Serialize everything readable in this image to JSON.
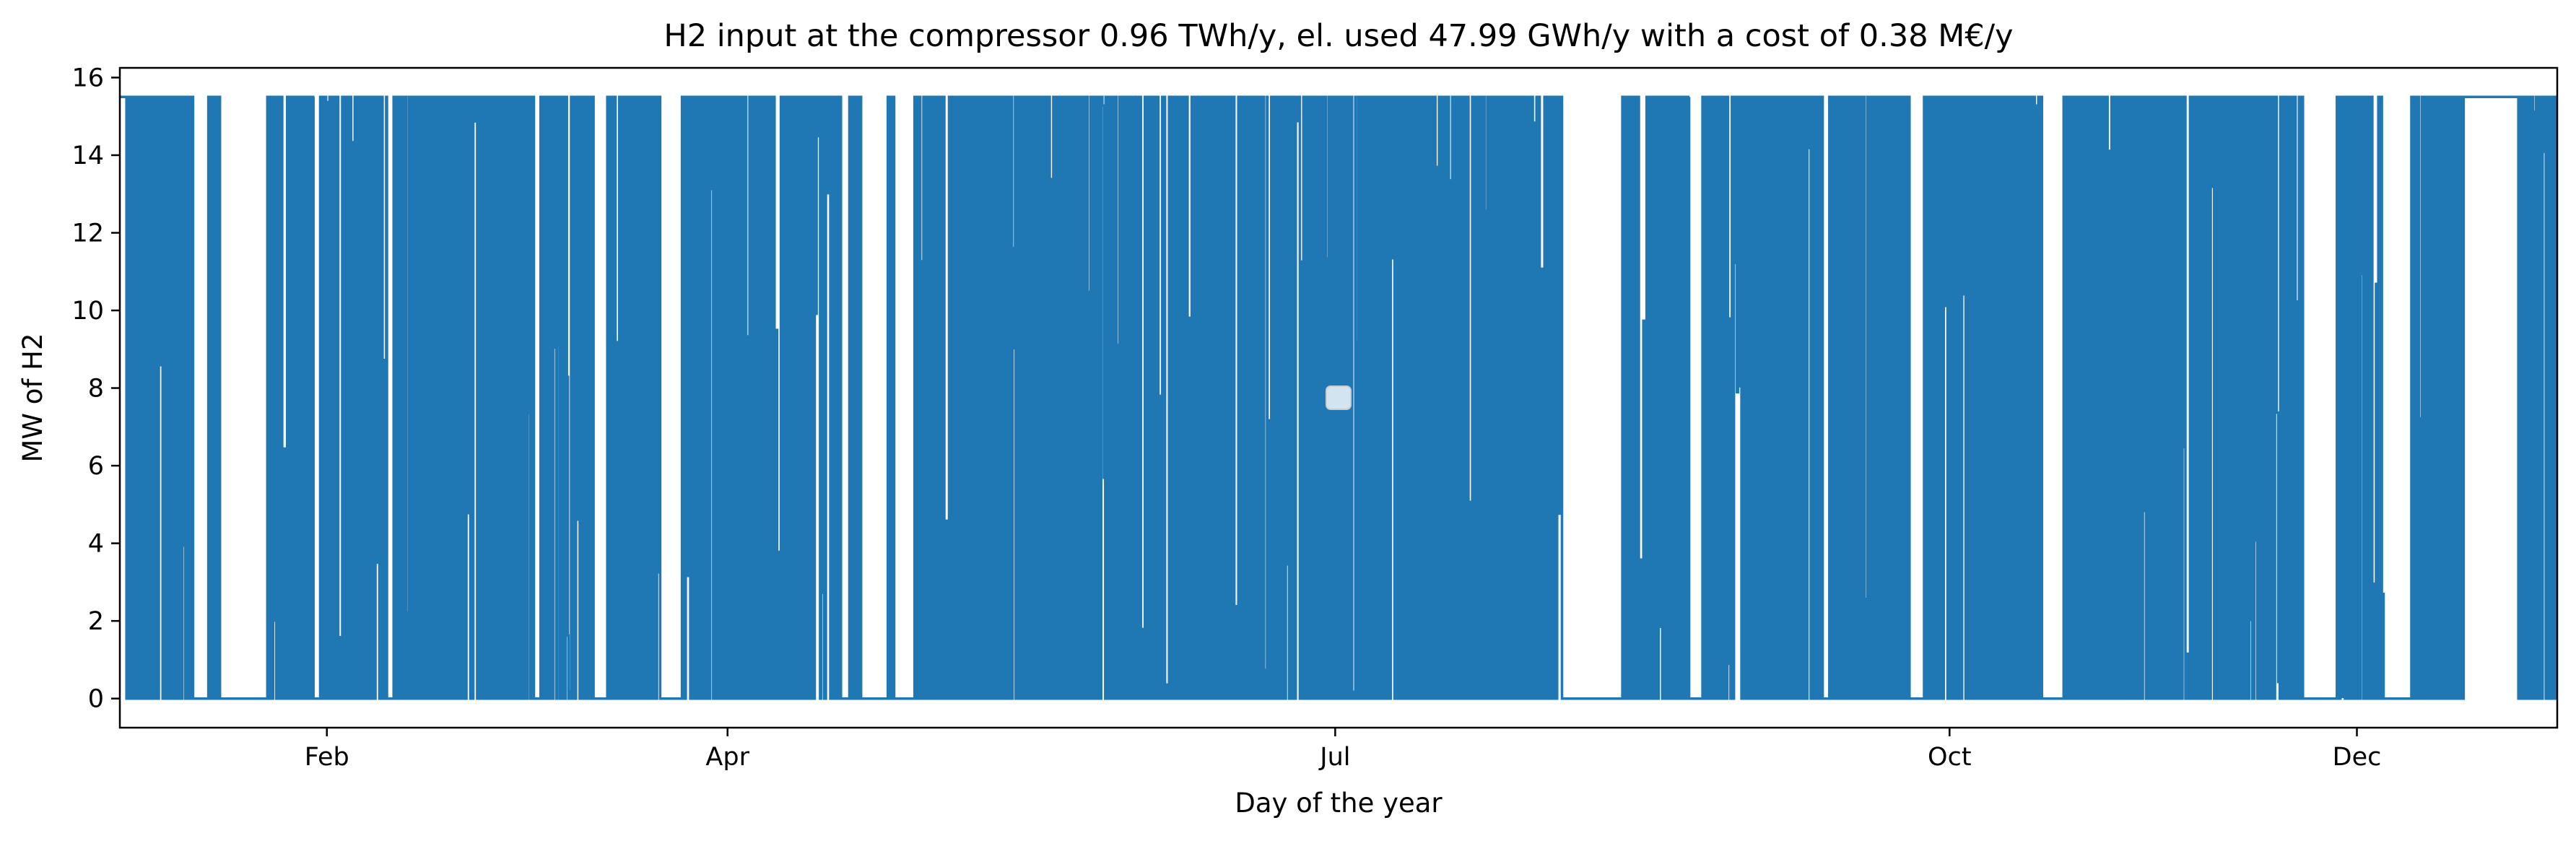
{
  "chart_data": {
    "type": "line",
    "title": "H2 input at the compressor 0.96 TWh/y, el. used 47.99 GWh/y with a cost of 0.38 M€/y",
    "xlabel": "Day of the year",
    "ylabel": "MW of H2",
    "x_unit": "day of year",
    "xlim": [
      1,
      366
    ],
    "ylim": [
      -0.75,
      16.25
    ],
    "y_ticks": [
      0,
      2,
      4,
      6,
      8,
      10,
      12,
      14,
      16
    ],
    "x_ticks": [
      {
        "label": "Feb",
        "day": 32
      },
      {
        "label": "Apr",
        "day": 92
      },
      {
        "label": "Jul",
        "day": 183
      },
      {
        "label": "Oct",
        "day": 275
      },
      {
        "label": "Dec",
        "day": 336
      }
    ],
    "series": [
      {
        "color": "#1f77b4",
        "line": "hourly step, alternating between 0 and 15.5 MW",
        "segments": [
          {
            "from_day": 1,
            "to_day": 2,
            "value": 15.5
          },
          {
            "from_day": 2,
            "to_day": 12,
            "value": "on/off 0–15.5"
          },
          {
            "from_day": 12,
            "to_day": 14,
            "value": 0
          },
          {
            "from_day": 14,
            "to_day": 16,
            "value": "on/off 0–15.5"
          },
          {
            "from_day": 16,
            "to_day": 23,
            "value": 0
          },
          {
            "from_day": 23,
            "to_day": 30,
            "value": "on/off 0–15.5"
          },
          {
            "from_day": 30,
            "to_day": 31,
            "value": 0
          },
          {
            "from_day": 31,
            "to_day": 41,
            "value": "on/off 0–15.5"
          },
          {
            "from_day": 41,
            "to_day": 42,
            "value": 0
          },
          {
            "from_day": 42,
            "to_day": 63,
            "value": "on/off 0–15.5"
          },
          {
            "from_day": 63,
            "to_day": 64,
            "value": 0
          },
          {
            "from_day": 64,
            "to_day": 72,
            "value": "on/off 0–15.5"
          },
          {
            "from_day": 72,
            "to_day": 74,
            "value": 0
          },
          {
            "from_day": 74,
            "to_day": 82,
            "value": "on/off 0–15.5"
          },
          {
            "from_day": 82,
            "to_day": 85,
            "value": 0
          },
          {
            "from_day": 85,
            "to_day": 102,
            "value": "on/off 0–15.5"
          },
          {
            "from_day": 102,
            "to_day": 109,
            "value": "on/off 0–15.5"
          },
          {
            "from_day": 109,
            "to_day": 110,
            "value": 0
          },
          {
            "from_day": 110,
            "to_day": 112,
            "value": "on/off 0–15.5"
          },
          {
            "from_day": 112,
            "to_day": 116,
            "value": 0
          },
          {
            "from_day": 116,
            "to_day": 117,
            "value": "on/off 0–15.5"
          },
          {
            "from_day": 117,
            "to_day": 120,
            "value": 0
          },
          {
            "from_day": 120,
            "to_day": 140,
            "value": "on/off 0–15.5"
          },
          {
            "from_day": 140,
            "to_day": 172,
            "value": "on/off 0–15.5"
          },
          {
            "from_day": 172,
            "to_day": 217,
            "value": "on/off 0–15.5"
          },
          {
            "from_day": 217,
            "to_day": 226,
            "value": 0
          },
          {
            "from_day": 226,
            "to_day": 236,
            "value": "on/off 0–15.5"
          },
          {
            "from_day": 236,
            "to_day": 238,
            "value": 0
          },
          {
            "from_day": 238,
            "to_day": 256,
            "value": "on/off 0–15.5"
          },
          {
            "from_day": 256,
            "to_day": 257,
            "value": 0
          },
          {
            "from_day": 257,
            "to_day": 269,
            "value": "on/off 0–15.5"
          },
          {
            "from_day": 269,
            "to_day": 271,
            "value": 0
          },
          {
            "from_day": 271,
            "to_day": 289,
            "value": "on/off 0–15.5"
          },
          {
            "from_day": 289,
            "to_day": 292,
            "value": 0
          },
          {
            "from_day": 292,
            "to_day": 319,
            "value": "on/off 0–15.5"
          },
          {
            "from_day": 319,
            "to_day": 328,
            "value": "on/off 0–15.5"
          },
          {
            "from_day": 328,
            "to_day": 333,
            "value": 0
          },
          {
            "from_day": 333,
            "to_day": 340,
            "value": "on/off 0–15.5"
          },
          {
            "from_day": 340,
            "to_day": 344,
            "value": 0
          },
          {
            "from_day": 344,
            "to_day": 352,
            "value": "on/off 0–15.5"
          },
          {
            "from_day": 352,
            "to_day": 360,
            "value": 15.5
          },
          {
            "from_day": 360,
            "to_day": 366,
            "value": "on/off 0–15.5"
          }
        ]
      }
    ],
    "legend": "center, empty box",
    "grid": false
  }
}
